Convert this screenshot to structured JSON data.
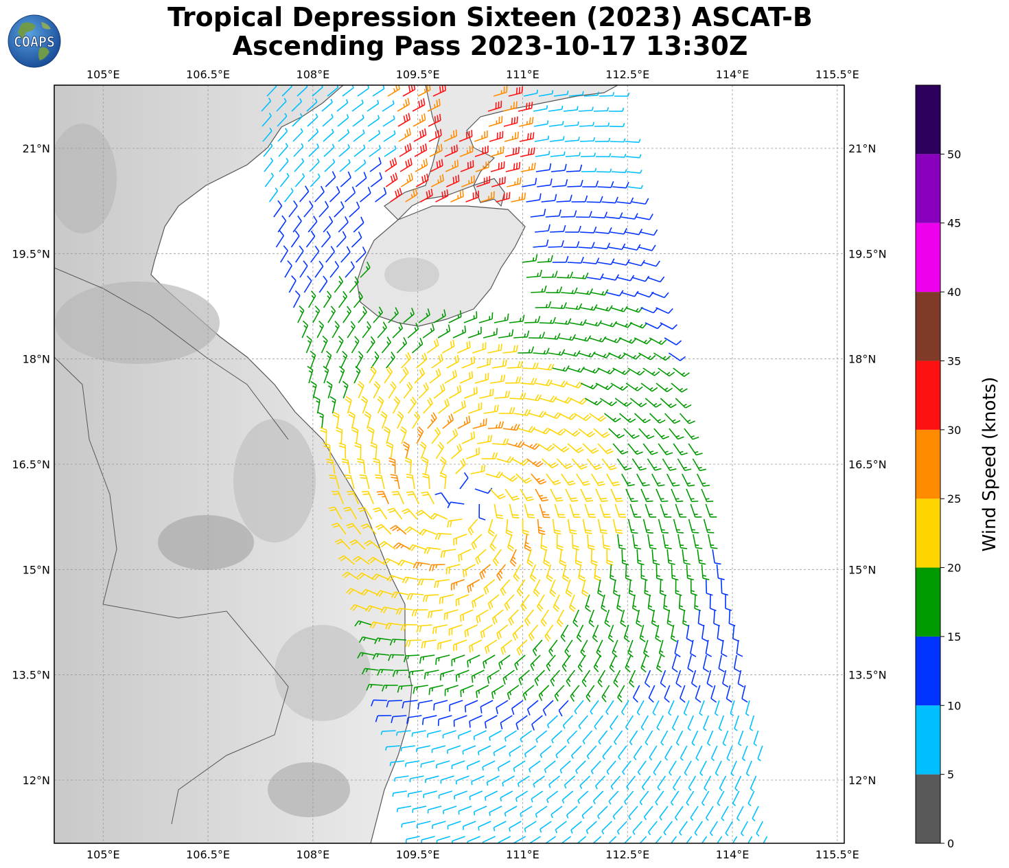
{
  "title": {
    "line1": "Tropical Depression Sixteen (2023) ASCAT-B",
    "line2": "Ascending Pass 2023-10-17 13:30Z"
  },
  "logo": {
    "text": "COAPS",
    "icon": "globe-logo-icon"
  },
  "map": {
    "lon_range": [
      104.3,
      115.6
    ],
    "lat_range": [
      11.1,
      21.9
    ],
    "lon_ticks": [
      "105°E",
      "106.5°E",
      "108°E",
      "109.5°E",
      "111°E",
      "112.5°E",
      "114°E",
      "115.5°E"
    ],
    "lat_ticks": [
      "21°N",
      "19.5°N",
      "18°N",
      "16.5°N",
      "15°N",
      "13.5°N",
      "12°N"
    ],
    "grid": true,
    "basemap": "grayscale-terrain",
    "storm_center": {
      "lon": 110.2,
      "lat": 16.0
    }
  },
  "colorbar": {
    "label": "Wind Speed (knots)",
    "ticks": [
      "0",
      "5",
      "10",
      "15",
      "20",
      "25",
      "30",
      "35",
      "40",
      "45",
      "50"
    ],
    "colors": [
      "#595959",
      "#00bfff",
      "#0033ff",
      "#009900",
      "#ffd500",
      "#ff8c00",
      "#ff1111",
      "#7f3b28",
      "#ee00ee",
      "#8800bb",
      "#2d005e"
    ]
  }
}
